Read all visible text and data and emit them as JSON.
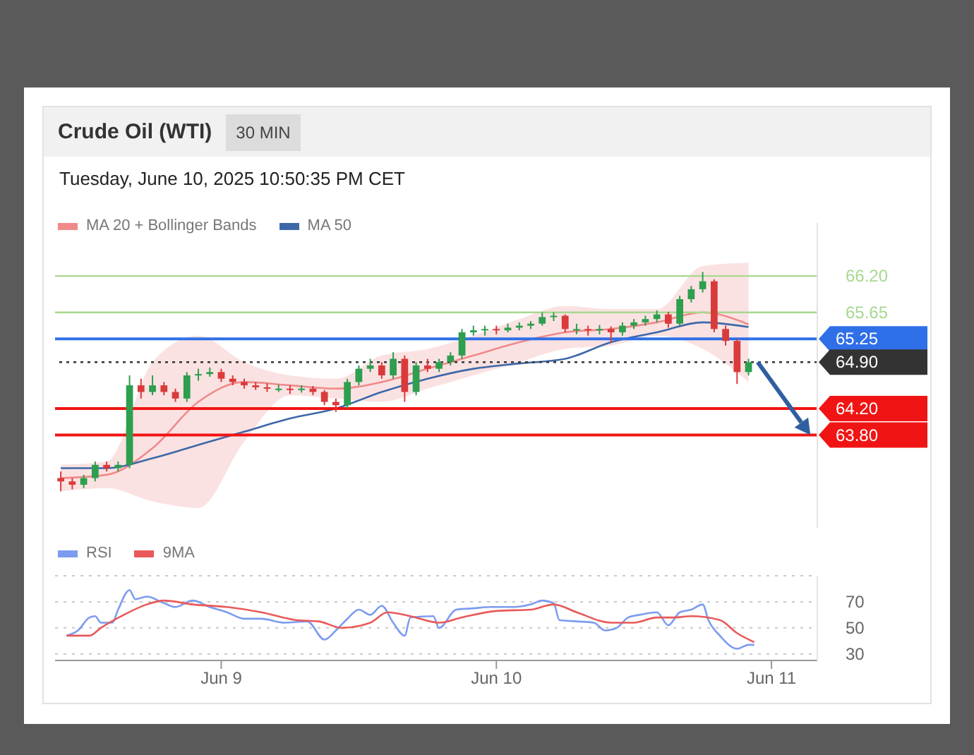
{
  "chart_data": [
    {
      "type": "candlestick",
      "title": "Crude Oil (WTI)",
      "subtitle": "Tuesday, June 10, 2025 10:50:35 PM CET",
      "annotations": [
        "30 MIN"
      ],
      "x": [
        "2025-06-08T10:00",
        "2025-06-08T11:00",
        "2025-06-08T12:00",
        "2025-06-08T13:00",
        "2025-06-08T14:00",
        "2025-06-08T15:00",
        "2025-06-08T16:00",
        "2025-06-08T17:00",
        "2025-06-08T18:00",
        "2025-06-08T19:00",
        "2025-06-08T20:00",
        "2025-06-08T21:00",
        "2025-06-08T22:00",
        "2025-06-08T23:00",
        "2025-06-09T00:00",
        "2025-06-09T01:00",
        "2025-06-09T02:00",
        "2025-06-09T03:00",
        "2025-06-09T04:00",
        "2025-06-09T05:00",
        "2025-06-09T06:00",
        "2025-06-09T07:00",
        "2025-06-09T08:00",
        "2025-06-09T09:00",
        "2025-06-09T10:00",
        "2025-06-09T11:00",
        "2025-06-09T12:00",
        "2025-06-09T13:00",
        "2025-06-09T14:00",
        "2025-06-09T15:00",
        "2025-06-09T16:00",
        "2025-06-09T17:00",
        "2025-06-09T18:00",
        "2025-06-09T19:00",
        "2025-06-09T20:00",
        "2025-06-09T21:00",
        "2025-06-09T22:00",
        "2025-06-09T23:00",
        "2025-06-10T00:00",
        "2025-06-10T01:00",
        "2025-06-10T02:00",
        "2025-06-10T03:00",
        "2025-06-10T04:00",
        "2025-06-10T05:00",
        "2025-06-10T06:00",
        "2025-06-10T07:00",
        "2025-06-10T08:00",
        "2025-06-10T09:00",
        "2025-06-10T10:00",
        "2025-06-10T11:00",
        "2025-06-10T12:00",
        "2025-06-10T13:00",
        "2025-06-10T14:00",
        "2025-06-10T15:00",
        "2025-06-10T16:00",
        "2025-06-10T17:00",
        "2025-06-10T18:00",
        "2025-06-10T19:00",
        "2025-06-10T20:00",
        "2025-06-10T21:00",
        "2025-06-10T22:00"
      ],
      "ohlc": [
        [
          63.15,
          63.25,
          62.95,
          63.1
        ],
        [
          63.1,
          63.15,
          62.98,
          63.05
        ],
        [
          63.05,
          63.2,
          63.0,
          63.15
        ],
        [
          63.15,
          63.4,
          63.1,
          63.35
        ],
        [
          63.35,
          63.4,
          63.25,
          63.3
        ],
        [
          63.3,
          63.4,
          63.25,
          63.35
        ],
        [
          63.35,
          64.7,
          63.3,
          64.55
        ],
        [
          64.55,
          64.65,
          64.35,
          64.45
        ],
        [
          64.45,
          64.7,
          64.4,
          64.55
        ],
        [
          64.55,
          64.6,
          64.4,
          64.45
        ],
        [
          64.45,
          64.5,
          64.3,
          64.35
        ],
        [
          64.35,
          64.75,
          64.3,
          64.7
        ],
        [
          64.7,
          64.8,
          64.62,
          64.72
        ],
        [
          64.72,
          64.82,
          64.68,
          64.75
        ],
        [
          64.75,
          64.8,
          64.6,
          64.65
        ],
        [
          64.65,
          64.7,
          64.55,
          64.6
        ],
        [
          64.6,
          64.65,
          64.5,
          64.55
        ],
        [
          64.55,
          64.6,
          64.48,
          64.52
        ],
        [
          64.52,
          64.58,
          64.45,
          64.5
        ],
        [
          64.5,
          64.56,
          64.45,
          64.5
        ],
        [
          64.5,
          64.55,
          64.42,
          64.48
        ],
        [
          64.48,
          64.55,
          64.44,
          64.5
        ],
        [
          64.5,
          64.54,
          64.4,
          64.45
        ],
        [
          64.45,
          64.48,
          64.25,
          64.3
        ],
        [
          64.3,
          64.35,
          64.15,
          64.25
        ],
        [
          64.25,
          64.65,
          64.2,
          64.6
        ],
        [
          64.6,
          64.85,
          64.55,
          64.8
        ],
        [
          64.8,
          64.95,
          64.75,
          64.85
        ],
        [
          64.85,
          64.9,
          64.65,
          64.7
        ],
        [
          64.7,
          65.05,
          64.65,
          64.95
        ],
        [
          64.95,
          65.0,
          64.3,
          64.45
        ],
        [
          64.45,
          64.9,
          64.4,
          64.85
        ],
        [
          64.85,
          64.95,
          64.75,
          64.8
        ],
        [
          64.8,
          64.95,
          64.75,
          64.9
        ],
        [
          64.9,
          65.05,
          64.85,
          65.0
        ],
        [
          65.0,
          65.4,
          64.95,
          65.35
        ],
        [
          65.35,
          65.45,
          65.3,
          65.38
        ],
        [
          65.38,
          65.45,
          65.3,
          65.4
        ],
        [
          65.4,
          65.45,
          65.32,
          65.38
        ],
        [
          65.38,
          65.48,
          65.35,
          65.42
        ],
        [
          65.42,
          65.5,
          65.38,
          65.45
        ],
        [
          65.45,
          65.52,
          65.4,
          65.48
        ],
        [
          65.48,
          65.65,
          65.45,
          65.58
        ],
        [
          65.58,
          65.65,
          65.52,
          65.6
        ],
        [
          65.6,
          65.62,
          65.35,
          65.4
        ],
        [
          65.4,
          65.48,
          65.32,
          65.4
        ],
        [
          65.4,
          65.45,
          65.3,
          65.38
        ],
        [
          65.38,
          65.46,
          65.32,
          65.4
        ],
        [
          65.4,
          65.44,
          65.2,
          65.35
        ],
        [
          65.35,
          65.5,
          65.3,
          65.45
        ],
        [
          65.45,
          65.55,
          65.4,
          65.5
        ],
        [
          65.5,
          65.6,
          65.45,
          65.55
        ],
        [
          65.55,
          65.68,
          65.5,
          65.62
        ],
        [
          65.62,
          65.66,
          65.42,
          65.48
        ],
        [
          65.48,
          65.9,
          65.45,
          65.85
        ],
        [
          65.85,
          66.05,
          65.8,
          66.0
        ],
        [
          66.0,
          66.26,
          65.95,
          66.12
        ],
        [
          66.12,
          66.15,
          65.35,
          65.4
        ],
        [
          65.4,
          65.45,
          65.15,
          65.22
        ],
        [
          65.22,
          65.25,
          64.57,
          64.75
        ],
        [
          64.75,
          64.95,
          64.7,
          64.9
        ]
      ],
      "colors": [
        "#d93b3b",
        "#d93b3b",
        "#2e9e4f",
        "#2e9e4f",
        "#d93b3b",
        "#2e9e4f",
        "#2e9e4f",
        "#d93b3b",
        "#2e9e4f",
        "#d93b3b",
        "#d93b3b",
        "#2e9e4f",
        "#2e9e4f",
        "#2e9e4f",
        "#d93b3b",
        "#d93b3b",
        "#d93b3b",
        "#d93b3b",
        "#d93b3b",
        "#2e9e4f",
        "#d93b3b",
        "#2e9e4f",
        "#d93b3b",
        "#d93b3b",
        "#d93b3b",
        "#2e9e4f",
        "#2e9e4f",
        "#2e9e4f",
        "#d93b3b",
        "#2e9e4f",
        "#d93b3b",
        "#2e9e4f",
        "#d93b3b",
        "#2e9e4f",
        "#2e9e4f",
        "#2e9e4f",
        "#2e9e4f",
        "#2e9e4f",
        "#d93b3b",
        "#2e9e4f",
        "#2e9e4f",
        "#2e9e4f",
        "#2e9e4f",
        "#2e9e4f",
        "#d93b3b",
        "#2e9e4f",
        "#d93b3b",
        "#2e9e4f",
        "#d93b3b",
        "#2e9e4f",
        "#2e9e4f",
        "#2e9e4f",
        "#2e9e4f",
        "#d93b3b",
        "#2e9e4f",
        "#2e9e4f",
        "#2e9e4f",
        "#d93b3b",
        "#d93b3b",
        "#d93b3b",
        "#2e9e4f"
      ],
      "series": [
        {
          "name": "MA 20 + Bollinger Bands",
          "type": "line",
          "color": "#f08a8a",
          "x": [
            "2025-06-08T10:00",
            "2025-06-08T14:00",
            "2025-06-08T18:00",
            "2025-06-08T22:00",
            "2025-06-09T02:00",
            "2025-06-09T06:00",
            "2025-06-09T10:00",
            "2025-06-09T14:00",
            "2025-06-09T18:00",
            "2025-06-09T22:00",
            "2025-06-10T02:00",
            "2025-06-10T06:00",
            "2025-06-10T10:00",
            "2025-06-10T14:00",
            "2025-06-10T18:00",
            "2025-06-10T22:00"
          ],
          "values": [
            63.15,
            63.2,
            63.6,
            64.3,
            64.6,
            64.55,
            64.5,
            64.6,
            64.8,
            65.0,
            65.2,
            65.35,
            65.4,
            65.5,
            65.65,
            65.47
          ],
          "lower": [
            62.95,
            63.0,
            62.8,
            62.7,
            63.7,
            64.4,
            64.35,
            64.3,
            64.5,
            64.7,
            64.9,
            65.1,
            65.15,
            65.3,
            65.1,
            64.6
          ],
          "upper": [
            63.35,
            63.4,
            64.9,
            65.3,
            64.9,
            64.7,
            64.65,
            65.0,
            65.1,
            65.3,
            65.55,
            65.75,
            65.7,
            65.7,
            66.35,
            66.4
          ]
        },
        {
          "name": "MA 50",
          "type": "line",
          "color": "#3d68a8",
          "x": [
            "2025-06-08T10:00",
            "2025-06-08T14:00",
            "2025-06-08T18:00",
            "2025-06-08T22:00",
            "2025-06-09T02:00",
            "2025-06-09T06:00",
            "2025-06-09T10:00",
            "2025-06-09T14:00",
            "2025-06-09T18:00",
            "2025-06-09T22:00",
            "2025-06-10T02:00",
            "2025-06-10T06:00",
            "2025-06-10T10:00",
            "2025-06-10T14:00",
            "2025-06-10T18:00",
            "2025-06-10T22:00"
          ],
          "values": [
            63.3,
            63.3,
            63.45,
            63.65,
            63.85,
            64.05,
            64.2,
            64.45,
            64.65,
            64.8,
            64.88,
            64.95,
            65.2,
            65.35,
            65.5,
            65.43
          ]
        }
      ],
      "xlim": [
        "2025-06-08T09:30",
        "2025-06-11T04:00"
      ],
      "ylim": [
        62.4,
        67.0
      ],
      "yticks": [
        {
          "value": 66.2,
          "label": "66.20"
        },
        {
          "value": 65.65,
          "label": "65.65"
        }
      ],
      "ref_lines": [
        {
          "axis": "y",
          "value": 66.2,
          "color": "#a8d890"
        },
        {
          "axis": "y",
          "value": 65.65,
          "color": "#a8d890"
        },
        {
          "axis": "y",
          "value": 65.25,
          "color": "#2f6fe8",
          "label": "65.25"
        },
        {
          "axis": "y",
          "value": 64.9,
          "color": "#333333",
          "label": "64.90",
          "line_style": "dotted"
        },
        {
          "axis": "y",
          "value": 64.2,
          "color": "#f01414",
          "label": "64.20"
        },
        {
          "axis": "y",
          "value": 63.8,
          "color": "#f01414",
          "label": "63.80"
        }
      ],
      "legend": "top left",
      "tick_labels": "y"
    },
    {
      "type": "line",
      "series": [
        {
          "name": "RSI",
          "color": "#7c9cf0",
          "x": [
            "2025-06-08T10:30",
            "2025-06-08T11:30",
            "2025-06-08T12:30",
            "2025-06-08T13:00",
            "2025-06-08T13:30",
            "2025-06-08T14:30",
            "2025-06-08T15:00",
            "2025-06-08T16:00",
            "2025-06-08T16:30",
            "2025-06-08T17:30",
            "2025-06-08T19:00",
            "2025-06-08T20:00",
            "2025-06-08T21:30",
            "2025-06-08T23:00",
            "2025-06-09T00:30",
            "2025-06-09T02:00",
            "2025-06-09T03:30",
            "2025-06-09T05:30",
            "2025-06-09T07:30",
            "2025-06-09T09:00",
            "2025-06-09T10:00",
            "2025-06-09T11:00",
            "2025-06-09T12:00",
            "2025-06-09T13:00",
            "2025-06-09T14:00",
            "2025-06-09T15:00",
            "2025-06-09T16:00",
            "2025-06-09T16:30",
            "2025-06-09T18:30",
            "2025-06-09T19:00",
            "2025-06-09T20:30",
            "2025-06-09T22:00",
            "2025-06-09T23:30",
            "2025-06-10T01:30",
            "2025-06-10T03:00",
            "2025-06-10T04:00",
            "2025-06-10T05:00",
            "2025-06-10T05:30",
            "2025-06-10T07:00",
            "2025-06-10T08:30",
            "2025-06-10T09:30",
            "2025-06-10T10:30",
            "2025-06-10T11:30",
            "2025-06-10T12:30",
            "2025-06-10T14:00",
            "2025-06-10T15:00",
            "2025-06-10T16:00",
            "2025-06-10T17:00",
            "2025-06-10T18:00",
            "2025-06-10T18:30",
            "2025-06-10T19:30",
            "2025-06-10T21:00",
            "2025-06-10T22:00",
            "2025-06-10T22:30"
          ],
          "values": [
            44,
            48,
            58,
            59,
            54,
            54,
            64,
            79,
            72,
            74,
            69,
            66,
            71,
            66,
            62,
            57,
            57,
            54,
            55,
            41,
            48,
            57,
            64,
            60,
            67,
            54,
            44,
            58,
            59,
            50,
            64,
            65,
            66,
            66,
            68,
            71,
            69,
            56,
            55,
            54,
            48,
            50,
            58,
            60,
            62,
            52,
            62,
            64,
            68,
            56,
            44,
            34,
            37,
            37
          ]
        },
        {
          "name": "9MA",
          "color": "#e85a5a",
          "x": [
            "2025-06-08T10:30",
            "2025-06-08T12:30",
            "2025-06-08T13:30",
            "2025-06-08T15:30",
            "2025-06-08T17:30",
            "2025-06-08T19:00",
            "2025-06-08T21:30",
            "2025-06-09T00:30",
            "2025-06-09T03:30",
            "2025-06-09T06:30",
            "2025-06-09T08:30",
            "2025-06-09T10:30",
            "2025-06-09T13:00",
            "2025-06-09T14:30",
            "2025-06-09T16:30",
            "2025-06-09T19:00",
            "2025-06-09T21:00",
            "2025-06-10T00:00",
            "2025-06-10T03:00",
            "2025-06-10T05:00",
            "2025-06-10T07:00",
            "2025-06-10T10:00",
            "2025-06-10T12:00",
            "2025-06-10T14:00",
            "2025-06-10T15:30",
            "2025-06-10T17:00",
            "2025-06-10T19:30",
            "2025-06-10T21:00",
            "2025-06-10T22:30"
          ],
          "values": [
            44,
            44,
            50,
            60,
            68,
            71,
            68,
            66,
            62,
            56,
            55,
            50,
            54,
            62,
            59,
            54,
            58,
            63,
            64,
            68,
            62,
            54,
            54,
            58,
            58,
            59,
            56,
            46,
            39
          ]
        }
      ],
      "xlim": [
        "2025-06-08T09:30",
        "2025-06-11T04:00"
      ],
      "xticks": [
        {
          "value": "2025-06-09",
          "label": "Jun 9"
        },
        {
          "value": "2025-06-10",
          "label": "Jun 10"
        },
        {
          "value": "2025-06-11",
          "label": "Jun 11"
        }
      ],
      "ylim": [
        25,
        90
      ],
      "yticks": [
        30,
        50,
        70
      ],
      "grid": "y",
      "legend": "top left"
    }
  ]
}
